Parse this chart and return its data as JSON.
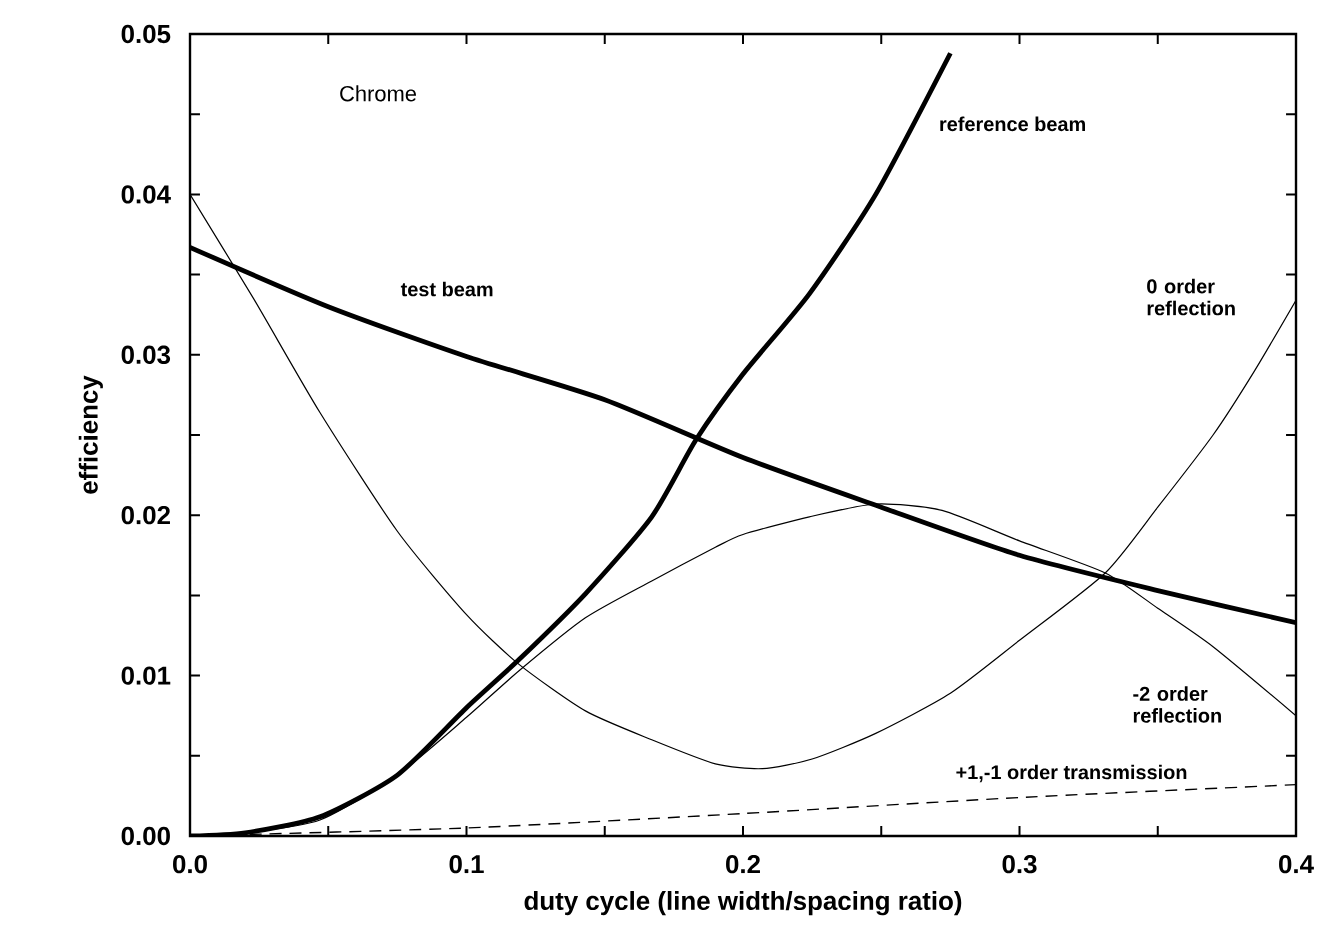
{
  "chart_data": {
    "type": "line",
    "xlabel": "duty cycle (line width/spacing ratio)",
    "ylabel": "efficiency",
    "annotations": [
      "Chrome"
    ],
    "xlim": [
      0,
      0.4
    ],
    "ylim": [
      0,
      0.05
    ],
    "xticks": [
      {
        "value": 0,
        "label": "0.0"
      },
      {
        "value": 0.05,
        "label": null
      },
      {
        "value": 0.1,
        "label": "0.1"
      },
      {
        "value": 0.15,
        "label": null
      },
      {
        "value": 0.2,
        "label": "0.2"
      },
      {
        "value": 0.25,
        "label": null
      },
      {
        "value": 0.3,
        "label": "0.3"
      },
      {
        "value": 0.35,
        "label": null
      },
      {
        "value": 0.4,
        "label": "0.4"
      }
    ],
    "yticks": [
      {
        "value": 0,
        "label": "0.00"
      },
      {
        "value": 0.005,
        "label": null
      },
      {
        "value": 0.01,
        "label": "0.01"
      },
      {
        "value": 0.015,
        "label": null
      },
      {
        "value": 0.02,
        "label": "0.02"
      },
      {
        "value": 0.025,
        "label": null
      },
      {
        "value": 0.03,
        "label": "0.03"
      },
      {
        "value": 0.035,
        "label": null
      },
      {
        "value": 0.04,
        "label": "0.04"
      },
      {
        "value": 0.045,
        "label": null
      },
      {
        "value": 0.05,
        "label": "0.05"
      }
    ],
    "grid": false,
    "marker": "none",
    "series": [
      {
        "name": "reference beam",
        "color": "#000000",
        "line_style": "solid",
        "x": [
          0,
          0.02,
          0.047,
          0.075,
          0.1,
          0.119,
          0.143,
          0.167,
          0.183,
          0.2,
          0.224,
          0.248,
          0.275
        ],
        "values": [
          0,
          0.0002,
          0.0012,
          0.0038,
          0.008,
          0.011,
          0.0151,
          0.0199,
          0.0247,
          0.0288,
          0.0338,
          0.04,
          0.0488
        ]
      },
      {
        "name": "test beam",
        "color": "#000000",
        "line_style": "solid",
        "x": [
          0,
          0.05,
          0.1,
          0.15,
          0.2,
          0.25,
          0.3,
          0.35,
          0.4
        ],
        "values": [
          0.0367,
          0.033,
          0.0299,
          0.0272,
          0.0236,
          0.0205,
          0.0175,
          0.0153,
          0.0133
        ]
      },
      {
        "name": "0 order reflection",
        "color": "#000000",
        "line_style": "solid",
        "x": [
          0,
          0.023,
          0.047,
          0.075,
          0.1,
          0.119,
          0.143,
          0.167,
          0.19,
          0.207,
          0.225,
          0.248,
          0.275,
          0.3,
          0.331,
          0.35,
          0.37,
          0.385,
          0.4
        ],
        "values": [
          0.04,
          0.0335,
          0.0264,
          0.019,
          0.0138,
          0.0107,
          0.0078,
          0.006,
          0.0045,
          0.0042,
          0.0048,
          0.0064,
          0.0089,
          0.0122,
          0.0164,
          0.0205,
          0.025,
          0.029,
          0.0334
        ]
      },
      {
        "name": "-2 order reflection",
        "color": "#000000",
        "line_style": "solid",
        "x": [
          0,
          0.02,
          0.047,
          0.075,
          0.1,
          0.119,
          0.143,
          0.167,
          0.19,
          0.2,
          0.224,
          0.248,
          0.272,
          0.3,
          0.331,
          0.35,
          0.37,
          0.4
        ],
        "values": [
          0,
          0.0002,
          0.001,
          0.0038,
          0.0074,
          0.0103,
          0.0136,
          0.0159,
          0.018,
          0.0188,
          0.0199,
          0.0207,
          0.0203,
          0.0184,
          0.0164,
          0.0142,
          0.0118,
          0.0075
        ]
      },
      {
        "name": "+1,-1 order transmission",
        "color": "#000000",
        "line_style": "dashed",
        "x": [
          0,
          0.1,
          0.2,
          0.3,
          0.4
        ],
        "values": [
          0,
          0.0005,
          0.0014,
          0.0024,
          0.0032
        ]
      }
    ]
  }
}
